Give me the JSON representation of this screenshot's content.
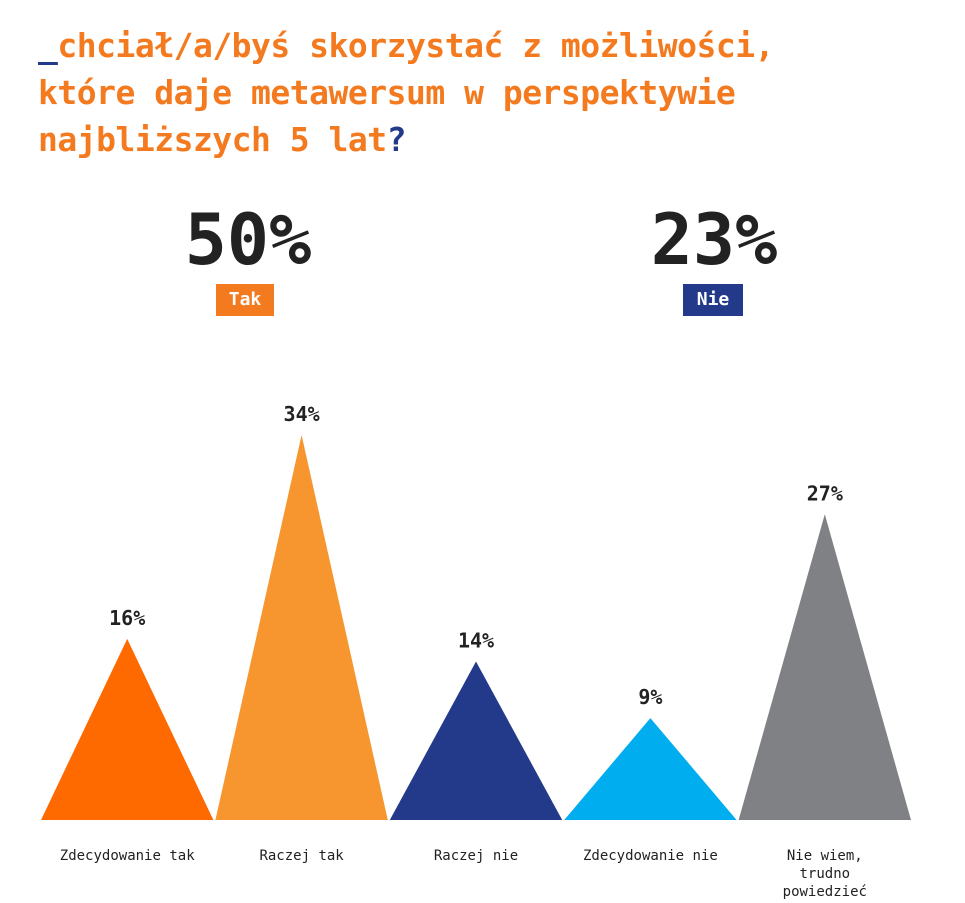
{
  "header": {
    "title_prefix": "_",
    "title_line1": "chciał/a/byś skorzystać z możliwości,",
    "title_line2": "które daje metawersum w perspektywie",
    "title_line3": "najbliższych 5 lat",
    "title_qmark": "?"
  },
  "summary": {
    "yes": {
      "value": "50%",
      "label": "Tak",
      "color": "#f47a20"
    },
    "no": {
      "value": "23%",
      "label": "Nie",
      "color": "#233a8b"
    }
  },
  "chart_data": {
    "type": "bar",
    "shape": "triangle",
    "categories": [
      [
        "Zdecydowanie tak"
      ],
      [
        "Raczej tak"
      ],
      [
        "Raczej nie"
      ],
      [
        "Zdecydowanie nie"
      ],
      [
        "Nie wiem,",
        "trudno",
        "powiedzieć"
      ]
    ],
    "values": [
      16,
      34,
      14,
      9,
      27
    ],
    "value_labels": [
      "16%",
      "34%",
      "14%",
      "9%",
      "27%"
    ],
    "colors": [
      "#ff6a00",
      "#f7962f",
      "#233a8b",
      "#00adef",
      "#808184"
    ],
    "ylim": [
      0,
      34
    ],
    "grid": false,
    "legend": "none"
  }
}
